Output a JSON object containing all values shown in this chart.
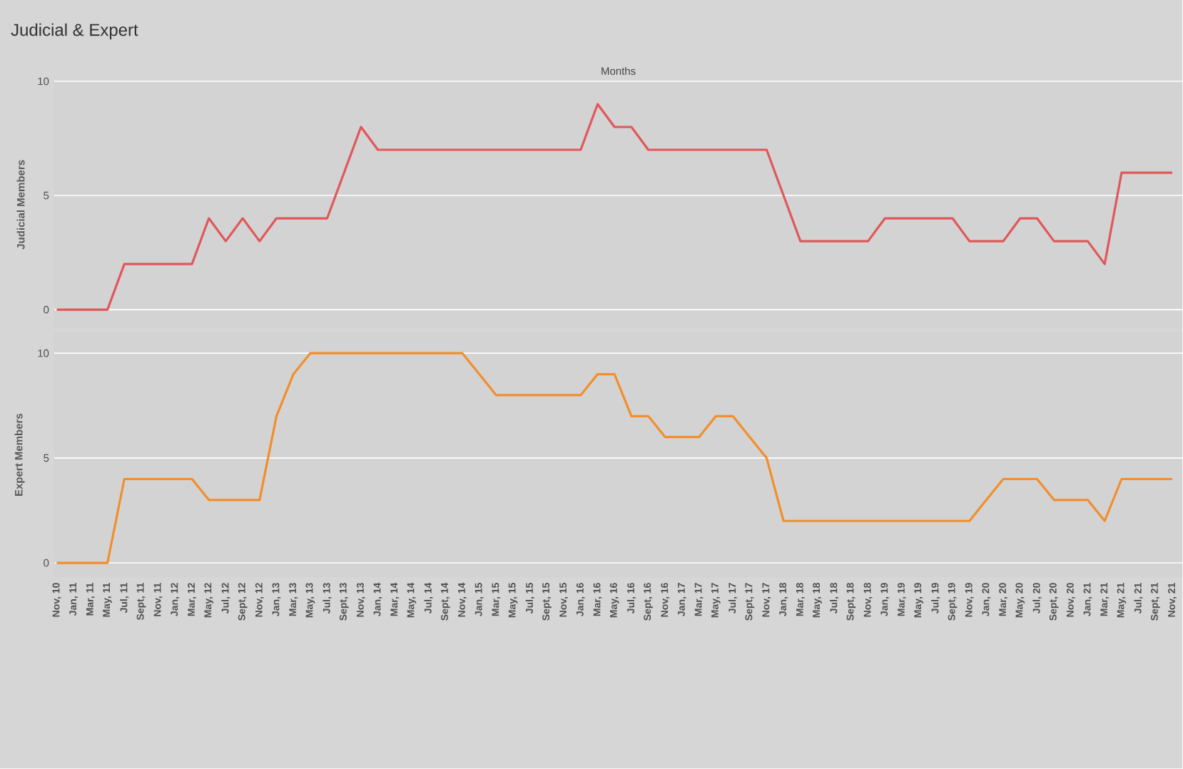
{
  "chart_data": [
    {
      "type": "line",
      "title": "Judicial & Expert",
      "xlabel": "Months",
      "ylabel": "Judicial Members",
      "tick_labels": "y",
      "grid": "y",
      "ylim": [
        -0.8,
        10
      ],
      "yticks": [
        0,
        5,
        10
      ],
      "categories": [
        null,
        null,
        null,
        null,
        null,
        null,
        null,
        null,
        null,
        null,
        null,
        null,
        null,
        null,
        null,
        null,
        null,
        null,
        null,
        null,
        null,
        null,
        null,
        null,
        null,
        null,
        null,
        null,
        null,
        null,
        null,
        null,
        null,
        null,
        null,
        null,
        null,
        null,
        null,
        null,
        null,
        null,
        null,
        null,
        null,
        null,
        null,
        null,
        null,
        null,
        null,
        null,
        null,
        null,
        null,
        null,
        null,
        null,
        null,
        null,
        null,
        null,
        null,
        null,
        null,
        null,
        null
      ],
      "series": [
        {
          "color": "#e15759",
          "values": [
            0,
            0,
            0,
            0,
            2,
            2,
            2,
            2,
            2,
            4,
            3,
            4,
            3,
            4,
            4,
            4,
            4,
            6,
            8,
            7,
            7,
            7,
            7,
            7,
            7,
            7,
            7,
            7,
            7,
            7,
            7,
            7,
            9,
            8,
            8,
            7,
            7,
            7,
            7,
            7,
            7,
            7,
            7,
            5,
            3,
            3,
            3,
            3,
            3,
            4,
            4,
            4,
            4,
            4,
            3,
            3,
            3,
            4,
            4,
            3,
            3,
            3,
            2,
            6,
            6,
            6,
            6
          ]
        }
      ]
    },
    {
      "type": "line",
      "ylabel": "Expert Members",
      "grid": "y",
      "ylim": [
        -0.7,
        11
      ],
      "yticks": [
        0,
        5,
        10
      ],
      "categories": [
        "Nov, 10",
        "Jan, 11",
        "Mar, 11",
        "May, 11",
        "Jul, 11",
        "Sept, 11",
        "Nov, 11",
        "Jan, 12",
        "Mar, 12",
        "May, 12",
        "Jul, 12",
        "Sept, 12",
        "Nov, 12",
        "Jan, 13",
        "Mar, 13",
        "May, 13",
        "Jul, 13",
        "Sept, 13",
        "Nov, 13",
        "Jan, 14",
        "Mar, 14",
        "May, 14",
        "Jul, 14",
        "Sept, 14",
        "Nov, 14",
        "Jan, 15",
        "Mar, 15",
        "May, 15",
        "Jul, 15",
        "Sept, 15",
        "Nov, 15",
        "Jan, 16",
        "Mar, 16",
        "May, 16",
        "Jul, 16",
        "Sept, 16",
        "Nov, 16",
        "Jan, 17",
        "Mar, 17",
        "May, 17",
        "Jul, 17",
        "Sept, 17",
        "Nov, 17",
        "Jan, 18",
        "Mar, 18",
        "May, 18",
        "Jul, 18",
        "Sept, 18",
        "Nov, 18",
        "Jan, 19",
        "Mar, 19",
        "May, 19",
        "Jul, 19",
        "Sept, 19",
        "Nov, 19",
        "Jan, 20",
        "Mar, 20",
        "May, 20",
        "Jul, 20",
        "Sept, 20",
        "Nov, 20",
        "Jan, 21",
        "Mar, 21",
        "May, 21",
        "Jul, 21",
        "Sept, 21",
        "Nov, 21"
      ],
      "series": [
        {
          "color": "#f28e2b",
          "values": [
            0,
            0,
            0,
            0,
            4,
            4,
            4,
            4,
            4,
            3,
            3,
            3,
            3,
            7,
            9,
            10,
            10,
            10,
            10,
            10,
            10,
            10,
            10,
            10,
            10,
            9,
            8,
            8,
            8,
            8,
            8,
            8,
            9,
            9,
            7,
            7,
            6,
            6,
            6,
            7,
            7,
            6,
            5,
            2,
            2,
            2,
            2,
            2,
            2,
            2,
            2,
            2,
            2,
            2,
            2,
            3,
            4,
            4,
            4,
            3,
            3,
            3,
            2,
            4,
            4,
            4,
            4
          ]
        }
      ]
    }
  ]
}
